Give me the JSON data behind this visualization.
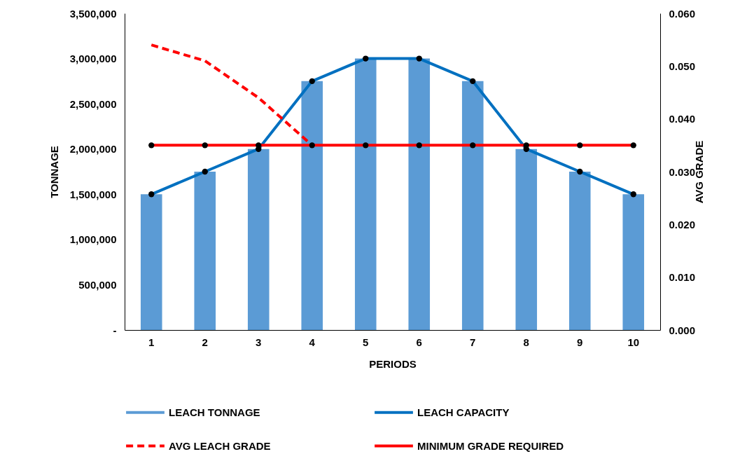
{
  "chart_data": {
    "type": "bar",
    "xlabel": "PERIODS",
    "ylabel": "TONNAGE",
    "y2label": "AVG GRADE",
    "categories": [
      "1",
      "2",
      "3",
      "4",
      "5",
      "6",
      "7",
      "8",
      "9",
      "10"
    ],
    "series": [
      {
        "name": "LEACH TONNAGE",
        "color": "#5b9bd5",
        "values": [
          1500000,
          1750000,
          2000000,
          2750000,
          3000000,
          3000000,
          2750000,
          2000000,
          1750000,
          1500000
        ]
      },
      {
        "name": "LEACH CAPACITY",
        "type": "line",
        "color": "#0070c0",
        "marker": "circle",
        "line_style": "solid",
        "values": [
          1500000,
          1750000,
          2000000,
          2750000,
          3000000,
          3000000,
          2750000,
          2000000,
          1750000,
          1500000
        ]
      },
      {
        "name": "AVG LEACH GRADE",
        "type": "line",
        "axis": "y2",
        "color": "#ff0000",
        "marker": "none",
        "line_style": "dashed",
        "values": [
          0.054,
          0.051,
          0.044,
          0.035,
          null,
          null,
          null,
          null,
          null,
          null
        ]
      },
      {
        "name": "MINIMUM GRADE REQUIRED",
        "type": "line",
        "axis": "y2",
        "color": "#ff0000",
        "marker": "circle",
        "line_style": "solid",
        "values": [
          0.035,
          0.035,
          0.035,
          0.035,
          0.035,
          0.035,
          0.035,
          0.035,
          0.035,
          0.035
        ]
      }
    ],
    "ylim": [
      0,
      3500000
    ],
    "yticks": [
      {
        "value": 0,
        "label": "-"
      },
      {
        "value": 500000,
        "label": "500,000"
      },
      {
        "value": 1000000,
        "label": "1,000,000"
      },
      {
        "value": 1500000,
        "label": "1,500,000"
      },
      {
        "value": 2000000,
        "label": "2,000,000"
      },
      {
        "value": 2500000,
        "label": "2,500,000"
      },
      {
        "value": 3000000,
        "label": "3,000,000"
      },
      {
        "value": 3500000,
        "label": "3,500,000"
      }
    ],
    "y2lim": [
      0,
      0.06
    ],
    "y2ticks": [
      {
        "value": 0,
        "label": "0.000"
      },
      {
        "value": 0.01,
        "label": "0.010"
      },
      {
        "value": 0.02,
        "label": "0.020"
      },
      {
        "value": 0.03,
        "label": "0.030"
      },
      {
        "value": 0.04,
        "label": "0.040"
      },
      {
        "value": 0.05,
        "label": "0.050"
      },
      {
        "value": 0.06,
        "label": "0.060"
      }
    ],
    "grid": false,
    "legend": "bottom"
  }
}
